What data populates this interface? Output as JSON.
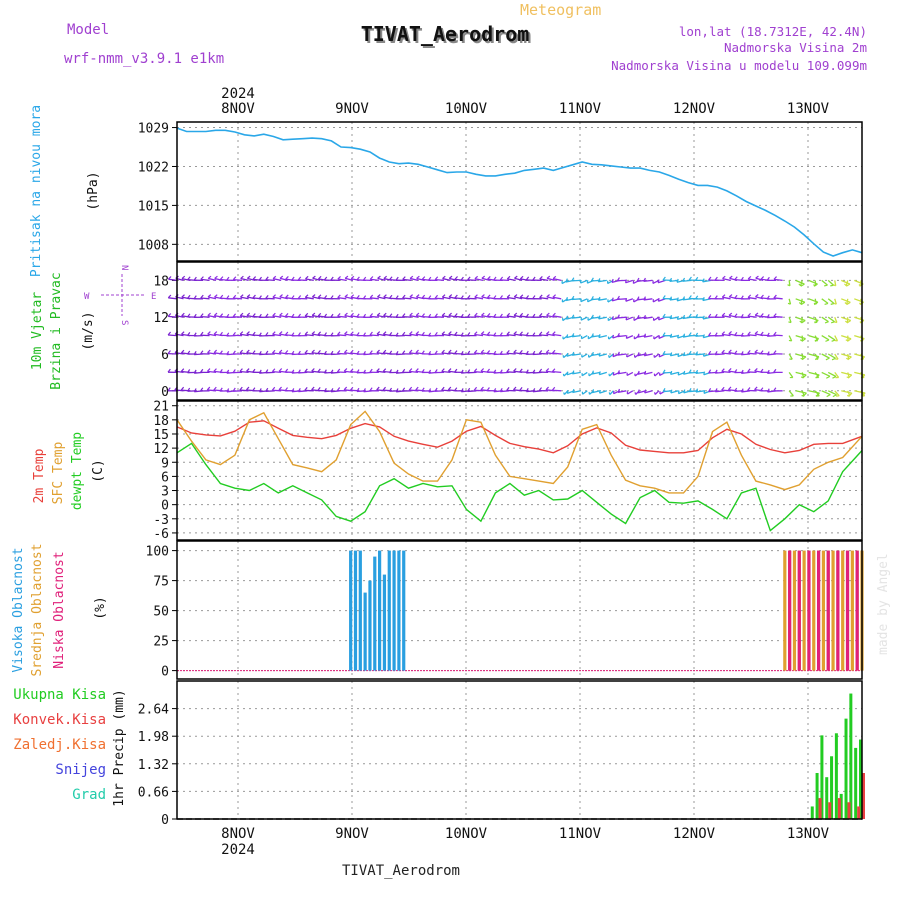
{
  "header": {
    "model_label": "Model",
    "model_name": "wrf-nmm_v3.9.1 e1km",
    "meteogram": "Meteogram",
    "station": "TIVAT_Aerodrom",
    "lonlat": "lon,lat (18.7312E, 42.4N)",
    "elev": "Nadmorska Visina 2m",
    "elev_model": "Nadmorska Visina u modelu 109.099m",
    "year": "2024",
    "footer_station": "TIVAT_Aerodrom",
    "credit": "made by Angel"
  },
  "colors": {
    "pressure": "#2aa7e8",
    "wind_label": "#22bb22",
    "temp2m": "#e8403a",
    "sfc": "#e0a030",
    "dew": "#22cc22",
    "high_cloud": "#2a9fe0",
    "mid_cloud": "#e0a030",
    "low_cloud": "#e0207a",
    "compass": "#a040d0",
    "total_rain": "#22cc22",
    "conv_rain": "#e84040",
    "frz_rain": "#f07030",
    "snow": "#4444dd",
    "graupel": "#22ccaa"
  },
  "chart_data": [
    {
      "type": "line",
      "panel": "pressure",
      "y_axis_label": [
        "Pritisak na nivou mora",
        "(hPa)"
      ],
      "x_ticks": [
        "8NOV",
        "9NOV",
        "10NOV",
        "11NOV",
        "12NOV",
        "13NOV"
      ],
      "yticks": [
        1008,
        1015,
        1022,
        1029
      ],
      "ylim": [
        1005,
        1030
      ],
      "x": [
        0,
        2,
        4,
        6,
        8,
        10,
        12,
        14,
        16,
        18,
        20,
        22,
        24,
        26,
        28,
        30,
        32,
        34,
        36,
        38,
        40,
        42,
        44,
        46,
        48,
        50,
        52,
        54,
        56,
        58,
        60,
        62,
        64,
        66,
        68,
        70,
        72,
        74,
        76,
        78,
        80,
        82,
        84,
        86,
        88,
        90,
        92,
        94,
        96,
        98,
        100,
        102,
        104,
        106,
        108,
        110,
        112,
        114,
        116,
        118,
        120,
        122,
        124,
        126,
        128,
        130,
        132,
        134,
        136,
        138,
        140,
        142
      ],
      "series": [
        {
          "values": [
            1028.9,
            1028.3,
            1028.3,
            1028.3,
            1028.5,
            1028.5,
            1028.2,
            1027.7,
            1027.5,
            1027.8,
            1027.4,
            1026.8,
            1026.9,
            1027.0,
            1027.1,
            1027.0,
            1026.6,
            1025.5,
            1025.4,
            1025.1,
            1024.6,
            1023.5,
            1022.8,
            1022.5,
            1022.6,
            1022.4,
            1021.9,
            1021.4,
            1020.9,
            1021.0,
            1021.0,
            1020.6,
            1020.3,
            1020.3,
            1020.6,
            1020.8,
            1021.3,
            1021.5,
            1021.7,
            1021.3,
            1021.8,
            1022.3,
            1022.8,
            1022.4,
            1022.3,
            1022.1,
            1021.9,
            1021.7,
            1021.7,
            1021.3,
            1021.0,
            1020.4,
            1019.7,
            1019.1,
            1018.6,
            1018.6,
            1018.3,
            1017.6,
            1016.7,
            1015.7,
            1014.9,
            1014.1,
            1013.2,
            1012.2,
            1011.1,
            1009.7,
            1008.1,
            1006.6,
            1005.9,
            1006.5,
            1007.0,
            1006.5
          ]
        }
      ]
    },
    {
      "type": "barbs",
      "panel": "wind",
      "y_axis_label": [
        "10m Vjetar",
        "Brzina i Pravac",
        "(m/s)"
      ],
      "compass": {
        "n": "N",
        "s": "S",
        "w": "W",
        "e": "E"
      },
      "yticks": [
        0,
        6,
        12,
        18
      ],
      "ylim": [
        -1.5,
        21
      ],
      "levels": [
        0,
        3,
        6,
        9,
        12,
        15,
        18,
        21
      ]
    },
    {
      "type": "line",
      "panel": "temperature",
      "y_axis_label": [
        "2m Temp",
        "SFC Temp",
        "dewpt Temp",
        "(C)"
      ],
      "yticks": [
        -6,
        -3,
        0,
        3,
        6,
        9,
        12,
        15,
        18,
        21
      ],
      "ylim": [
        -7.5,
        22
      ],
      "x": [
        0,
        3,
        6,
        9,
        12,
        15,
        18,
        21,
        24,
        27,
        30,
        33,
        36,
        39,
        42,
        45,
        48,
        51,
        54,
        57,
        60,
        63,
        66,
        69,
        72,
        75,
        78,
        81,
        84,
        87,
        90,
        93,
        96,
        99,
        102,
        105,
        108,
        111,
        114,
        117,
        120,
        123,
        126,
        129,
        132,
        135,
        138,
        142
      ],
      "series": [
        {
          "name": "2m Temp",
          "values": [
            16.5,
            15.2,
            14.8,
            14.6,
            15.6,
            17.5,
            17.8,
            16.2,
            14.7,
            14.3,
            14.0,
            14.7,
            16.2,
            17.2,
            16.5,
            14.5,
            13.5,
            12.8,
            12.2,
            13.5,
            15.6,
            16.6,
            14.7,
            13.0,
            12.3,
            11.8,
            11.0,
            12.5,
            15.0,
            16.3,
            15.2,
            12.6,
            11.6,
            11.3,
            11.0,
            11.0,
            11.5,
            14.2,
            16.0,
            15.0,
            12.8,
            11.7,
            11.0,
            11.5,
            12.8,
            13.0,
            13.0,
            14.5
          ]
        },
        {
          "name": "SFC Temp",
          "values": [
            18.0,
            13.5,
            9.5,
            8.5,
            10.5,
            18.0,
            19.5,
            14.0,
            8.5,
            7.8,
            7.0,
            9.5,
            17.0,
            19.8,
            15.5,
            8.8,
            6.5,
            5.0,
            5.0,
            9.5,
            18.0,
            17.5,
            10.5,
            6.0,
            5.5,
            5.0,
            4.5,
            8.0,
            16.0,
            17.0,
            10.5,
            5.2,
            4.0,
            3.5,
            2.5,
            2.5,
            6.0,
            15.5,
            17.5,
            10.5,
            5.0,
            4.2,
            3.2,
            4.2,
            7.5,
            9.0,
            10.0,
            14.5
          ]
        },
        {
          "name": "dewpt Temp",
          "values": [
            11.0,
            13.0,
            8.5,
            4.5,
            3.5,
            3.0,
            4.5,
            2.5,
            4.0,
            2.5,
            1.0,
            -2.5,
            -3.5,
            -1.5,
            4.0,
            5.5,
            3.5,
            4.5,
            3.8,
            4.0,
            -1.0,
            -3.5,
            2.5,
            4.5,
            2.0,
            3.0,
            1.0,
            1.2,
            3.0,
            0.5,
            -2.0,
            -4.0,
            1.5,
            3.0,
            0.5,
            0.3,
            0.8,
            -1.0,
            -3.0,
            2.5,
            3.5,
            -5.5,
            -3.0,
            0.0,
            -1.5,
            0.8,
            7.0,
            11.5
          ]
        }
      ]
    },
    {
      "type": "bar",
      "panel": "cloud",
      "y_axis_label": [
        "Visoka Oblacnost",
        "Srednja Oblacnost",
        "Niska Oblacnost",
        "(%)"
      ],
      "yticks": [
        0,
        25,
        50,
        75,
        100
      ],
      "ylim": [
        -7,
        108
      ],
      "series": [
        {
          "name": "Visoka Oblacnost",
          "x": [
            36,
            37,
            38,
            39,
            40,
            41,
            42,
            43,
            44,
            45,
            46,
            47
          ],
          "values": [
            100,
            100,
            100,
            65,
            75,
            95,
            100,
            80,
            100,
            100,
            100,
            100
          ]
        },
        {
          "name": "Srednja Oblacnost",
          "x": [
            126,
            127,
            128,
            129,
            130,
            131,
            132,
            133,
            134,
            135,
            136,
            137,
            138,
            139,
            140,
            141,
            142
          ],
          "values": [
            100,
            100,
            100,
            100,
            100,
            100,
            100,
            100,
            100,
            100,
            100,
            100,
            100,
            100,
            100,
            100,
            100
          ]
        },
        {
          "name": "Niska Oblacnost",
          "x": [
            127,
            129,
            131,
            133,
            135,
            137,
            139,
            141
          ],
          "values": [
            100,
            100,
            100,
            100,
            100,
            100,
            100,
            100
          ]
        }
      ]
    },
    {
      "type": "bar",
      "panel": "precip",
      "y_axis_label": [
        "1hr Precip (mm)"
      ],
      "legend": [
        "Ukupna Kisa",
        "Konvek.Kisa",
        "Zaledj.Kisa",
        "Snijeg",
        "Grad"
      ],
      "yticks": [
        0,
        0.66,
        1.32,
        1.98,
        2.64
      ],
      "ylim": [
        0,
        3.3
      ],
      "series": [
        {
          "name": "Ukupna Kisa",
          "x": [
            132,
            133,
            134,
            135,
            136,
            137,
            138,
            139,
            140,
            141,
            142
          ],
          "values": [
            0.3,
            1.1,
            2.0,
            1.0,
            1.5,
            2.05,
            0.6,
            2.4,
            3.0,
            1.7,
            1.9
          ]
        },
        {
          "name": "Konvek.Kisa",
          "x": [
            133,
            135,
            137,
            139,
            141,
            142
          ],
          "values": [
            0.5,
            0.4,
            0.5,
            0.4,
            0.3,
            1.1
          ]
        }
      ]
    }
  ]
}
